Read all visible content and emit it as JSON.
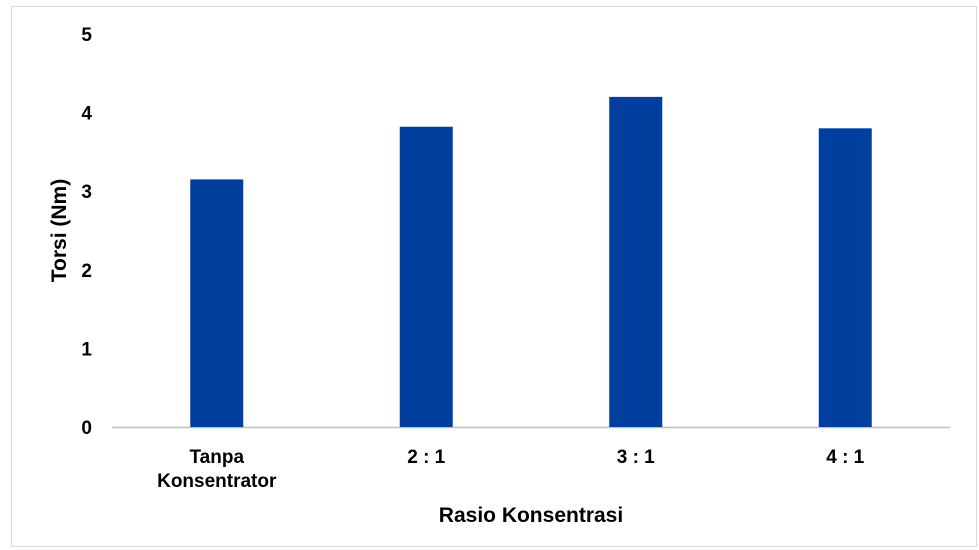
{
  "chart_data": {
    "type": "bar",
    "title": "",
    "xlabel": "Rasio Konsentrasi",
    "ylabel": "Torsi (Nm)",
    "categories": [
      [
        "Tanpa",
        "Konsentrator"
      ],
      [
        "2 : 1"
      ],
      [
        "3 : 1"
      ],
      [
        "4 : 1"
      ]
    ],
    "values": [
      3.15,
      3.82,
      4.2,
      3.8
    ],
    "ylim": [
      0,
      5
    ],
    "yticks": [
      "0",
      "1",
      "2",
      "3",
      "4",
      "5"
    ],
    "grid": false,
    "legend": "none",
    "bar_color": "#003f9e",
    "axis_color": "#bfbfbf"
  }
}
